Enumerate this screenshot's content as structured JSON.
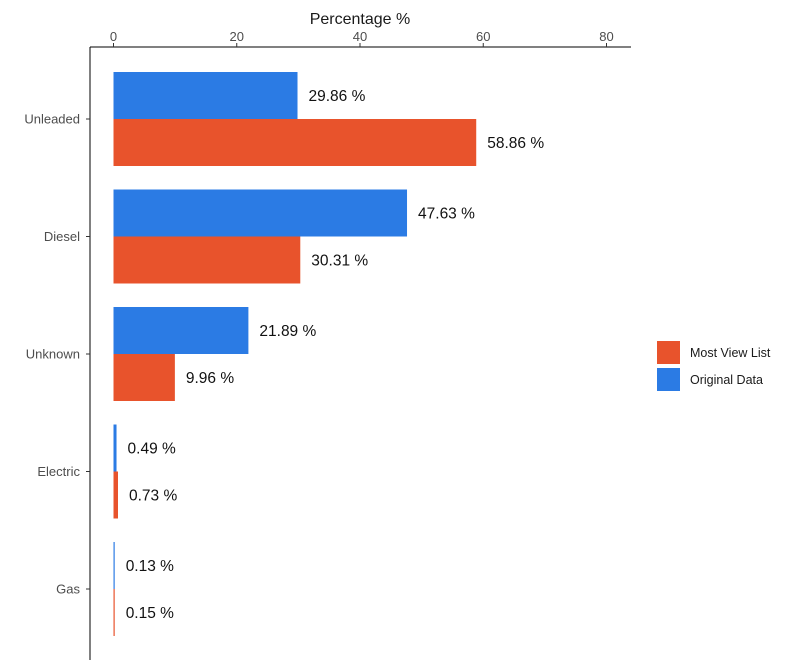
{
  "chart_data": {
    "type": "bar",
    "orientation": "horizontal",
    "title": "",
    "xlabel": "Percentage %",
    "ylabel": "",
    "x_axis_position": "top",
    "xlim": [
      0,
      80
    ],
    "xticks": [
      0,
      20,
      40,
      60,
      80
    ],
    "grid": false,
    "categories": [
      "Unleaded",
      "Diesel",
      "Unknown",
      "Electric",
      "Gas"
    ],
    "series": [
      {
        "name": "Original Data",
        "color": "#2B7BE4",
        "values": [
          29.86,
          47.63,
          21.89,
          0.49,
          0.13
        ],
        "labels": [
          "29.86 %",
          "47.63 %",
          "21.89 %",
          "0.49 %",
          "0.13 %"
        ]
      },
      {
        "name": "Most View List",
        "color": "#E8532C",
        "values": [
          58.86,
          30.31,
          9.96,
          0.73,
          0.15
        ],
        "labels": [
          "58.86 %",
          "30.31 %",
          "9.96 %",
          "0.73 %",
          "0.15 %"
        ]
      }
    ],
    "legend": {
      "position": "right",
      "order": [
        "Most View List",
        "Original Data"
      ]
    }
  }
}
